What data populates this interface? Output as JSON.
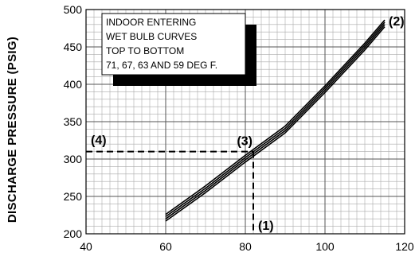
{
  "chart_data": {
    "type": "line",
    "ylabel": "DISCHARGE PRESSURE (PSIG)",
    "xlabel": "",
    "xlim": [
      40,
      120
    ],
    "ylim": [
      200,
      500
    ],
    "x_ticks": [
      40,
      60,
      80,
      100,
      120
    ],
    "y_ticks": [
      200,
      250,
      300,
      350,
      400,
      450,
      500
    ],
    "grid": true,
    "annotation_lines": [
      "INDOOR ENTERING",
      "WET BULB CURVES",
      "TOP TO BOTTOM",
      "71, 67, 63 AND 59 DEG F."
    ],
    "series": [
      {
        "x": [
          60,
          70,
          80,
          90,
          100,
          110,
          115
        ],
        "y": [
          226,
          264,
          305,
          344,
          398,
          455,
          486
        ]
      },
      {
        "x": [
          60,
          70,
          80,
          90,
          100,
          110,
          115
        ],
        "y": [
          223,
          261,
          302,
          341,
          395,
          452,
          483
        ]
      },
      {
        "x": [
          60,
          70,
          80,
          90,
          100,
          110,
          115
        ],
        "y": [
          220,
          258,
          299,
          338,
          392,
          449,
          480
        ]
      },
      {
        "x": [
          60,
          70,
          80,
          90,
          100,
          110,
          115
        ],
        "y": [
          217,
          255,
          296,
          335,
          389,
          446,
          477
        ]
      }
    ],
    "guide": {
      "x": 82,
      "y": 310
    },
    "markers": [
      {
        "label": "(1)",
        "x": 82,
        "y": 200
      },
      {
        "label": "(2)",
        "x": 115,
        "y": 485
      },
      {
        "label": "(3)",
        "x": 82,
        "y": 310
      },
      {
        "label": "(4)",
        "x": 40,
        "y": 310
      }
    ]
  }
}
